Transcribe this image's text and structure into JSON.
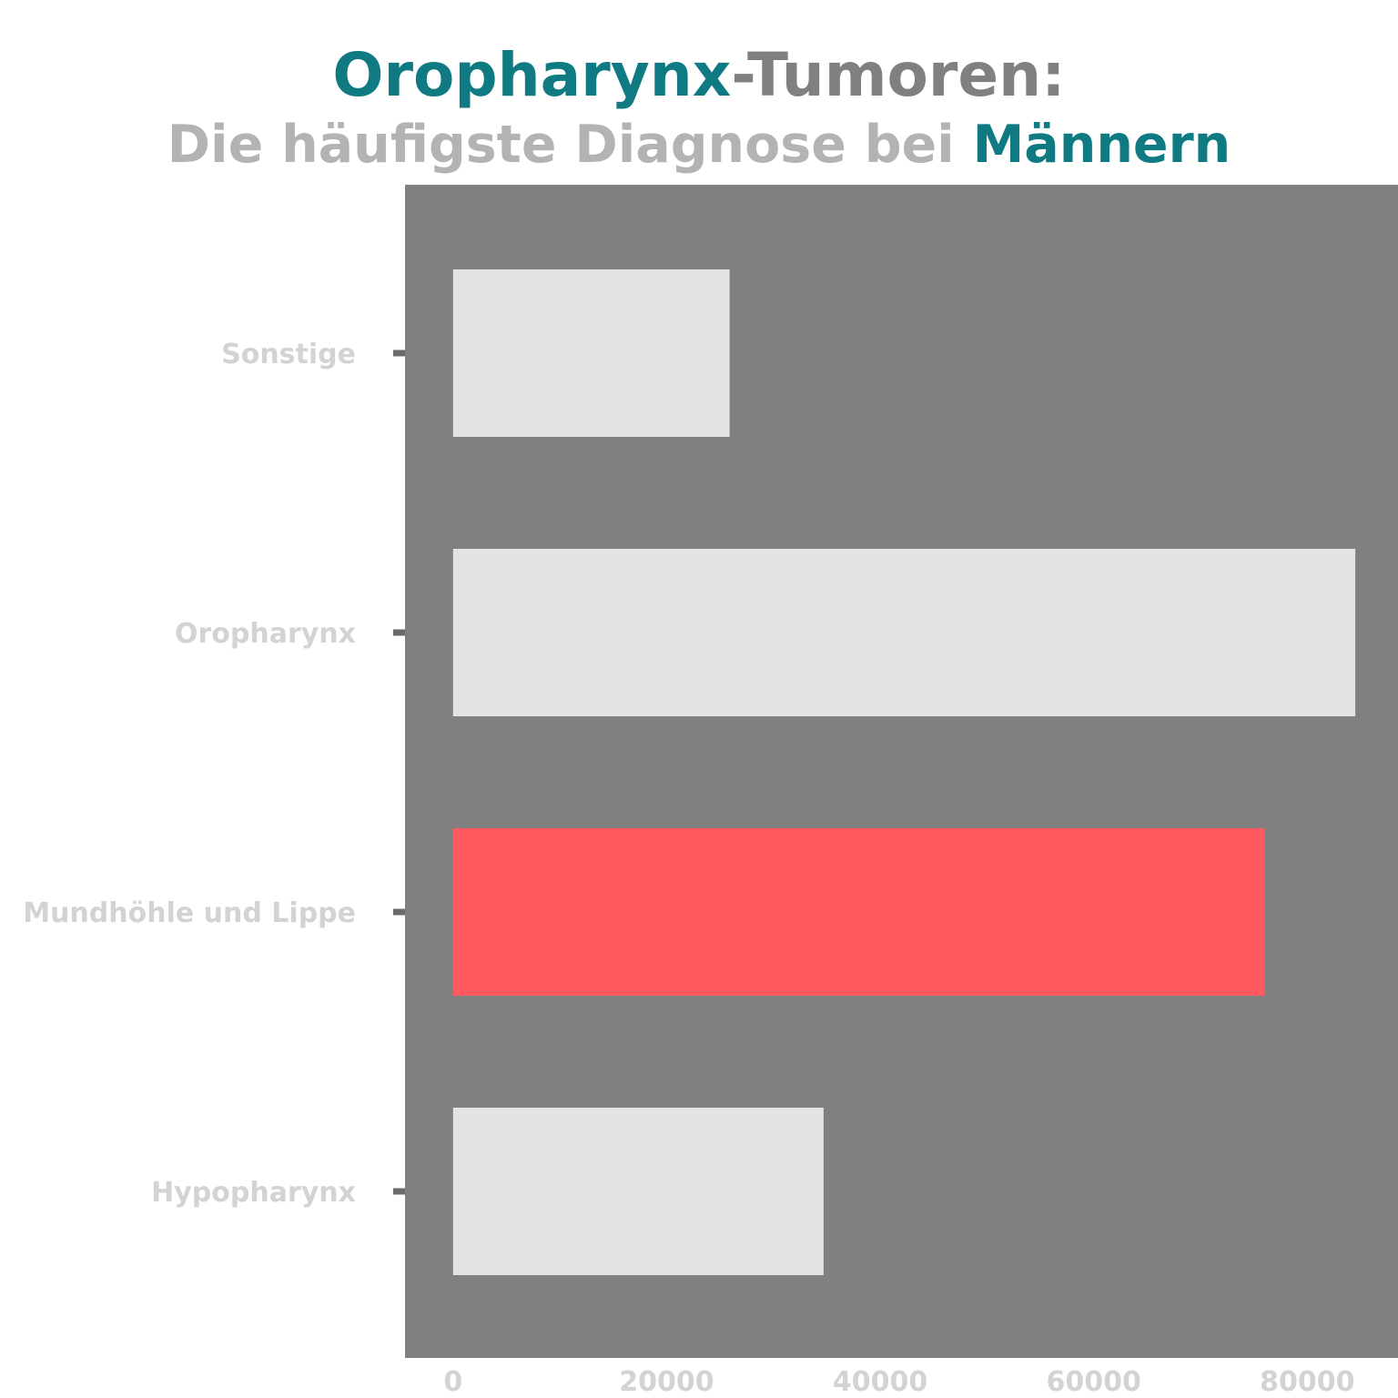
{
  "chart_data": {
    "type": "bar",
    "orientation": "horizontal",
    "title_parts": [
      {
        "text": "Oropharynx",
        "color": "#107a82"
      },
      {
        "text": "-Tumoren:",
        "color": "#808080"
      }
    ],
    "subtitle_parts": [
      {
        "text": "Die häufigste Diagnose bei ",
        "color": "#b3b3b3"
      },
      {
        "text": "Männern",
        "color": "#107a82"
      }
    ],
    "categories": [
      "Hypopharynx",
      "Mundhöhle und Lippe",
      "Oropharynx",
      "Sonstige"
    ],
    "values": [
      34700,
      76000,
      84500,
      25900
    ],
    "bar_colors": [
      "#e4e3e1",
      "#ff5a5f",
      "#e4e3e1",
      "#e4e3e1"
    ],
    "x_ticks": [
      "0",
      "20000",
      "40000",
      "60000",
      "80000"
    ],
    "tick_values": [
      0,
      20000,
      40000,
      60000,
      80000
    ],
    "xlim": [
      -4500,
      88500
    ],
    "xlabel": "",
    "ylabel": "",
    "grid": false,
    "legend": "none",
    "colors": {
      "plot_background": "#808080",
      "tick_label": "#d3d3d3",
      "tick_mark": "#6b6b6b",
      "page_background": "#ffffff"
    }
  }
}
